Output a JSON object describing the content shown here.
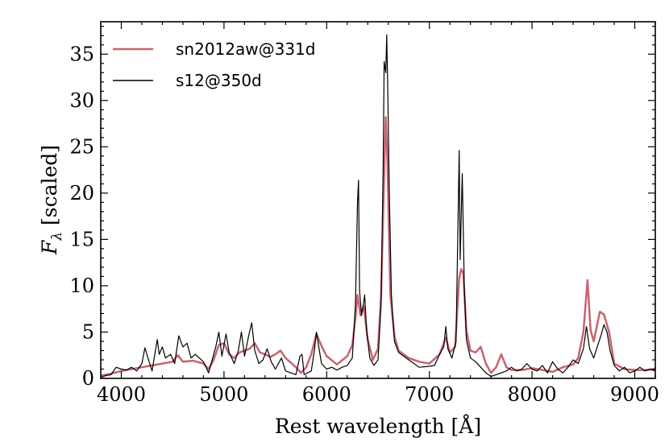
{
  "chart_data": {
    "type": "line",
    "title": "",
    "xlabel": "Rest wavelength [Å]",
    "ylabel_main": "F",
    "ylabel_sub": "λ",
    "ylabel_rest": " [scaled]",
    "xlim": [
      3800,
      9200
    ],
    "ylim": [
      0,
      38.5
    ],
    "xticks": [
      4000,
      5000,
      6000,
      7000,
      8000,
      9000
    ],
    "yticks": [
      0,
      5,
      10,
      15,
      20,
      25,
      30,
      35
    ],
    "legend_position": "top-left",
    "series": [
      {
        "name": "sn2012aw@331d",
        "color": "#c8636f",
        "points": [
          [
            3800,
            0.3
          ],
          [
            3900,
            0.5
          ],
          [
            4000,
            0.8
          ],
          [
            4100,
            1.0
          ],
          [
            4200,
            1.2
          ],
          [
            4300,
            1.4
          ],
          [
            4400,
            1.6
          ],
          [
            4500,
            1.8
          ],
          [
            4550,
            2.5
          ],
          [
            4600,
            1.8
          ],
          [
            4700,
            1.9
          ],
          [
            4800,
            1.6
          ],
          [
            4850,
            1.0
          ],
          [
            4900,
            2.0
          ],
          [
            4950,
            3.6
          ],
          [
            5000,
            3.8
          ],
          [
            5050,
            2.6
          ],
          [
            5100,
            2.2
          ],
          [
            5150,
            2.8
          ],
          [
            5200,
            3.0
          ],
          [
            5250,
            3.2
          ],
          [
            5300,
            3.8
          ],
          [
            5350,
            2.8
          ],
          [
            5400,
            2.6
          ],
          [
            5450,
            2.3
          ],
          [
            5500,
            2.6
          ],
          [
            5550,
            3.0
          ],
          [
            5600,
            2.2
          ],
          [
            5700,
            1.2
          ],
          [
            5750,
            0.6
          ],
          [
            5800,
            1.2
          ],
          [
            5850,
            2.6
          ],
          [
            5900,
            4.8
          ],
          [
            5950,
            3.5
          ],
          [
            6000,
            2.4
          ],
          [
            6100,
            1.5
          ],
          [
            6200,
            2.4
          ],
          [
            6250,
            3.6
          ],
          [
            6280,
            6.5
          ],
          [
            6300,
            9.0
          ],
          [
            6330,
            6.8
          ],
          [
            6360,
            7.8
          ],
          [
            6400,
            4.2
          ],
          [
            6450,
            2.0
          ],
          [
            6500,
            3.2
          ],
          [
            6530,
            9.0
          ],
          [
            6560,
            22.0
          ],
          [
            6575,
            28.2
          ],
          [
            6590,
            24.0
          ],
          [
            6620,
            9.0
          ],
          [
            6660,
            4.5
          ],
          [
            6700,
            3.0
          ],
          [
            6800,
            2.2
          ],
          [
            6900,
            1.8
          ],
          [
            7000,
            1.6
          ],
          [
            7100,
            2.6
          ],
          [
            7160,
            4.4
          ],
          [
            7200,
            2.8
          ],
          [
            7250,
            3.4
          ],
          [
            7290,
            10.8
          ],
          [
            7310,
            11.8
          ],
          [
            7330,
            11.4
          ],
          [
            7360,
            5.2
          ],
          [
            7400,
            3.0
          ],
          [
            7450,
            2.8
          ],
          [
            7500,
            3.4
          ],
          [
            7550,
            1.6
          ],
          [
            7600,
            0.6
          ],
          [
            7650,
            1.2
          ],
          [
            7700,
            2.6
          ],
          [
            7750,
            1.2
          ],
          [
            7800,
            0.9
          ],
          [
            7900,
            0.9
          ],
          [
            8000,
            1.1
          ],
          [
            8100,
            0.9
          ],
          [
            8200,
            0.7
          ],
          [
            8300,
            1.2
          ],
          [
            8400,
            1.5
          ],
          [
            8450,
            2.2
          ],
          [
            8500,
            5.0
          ],
          [
            8540,
            10.6
          ],
          [
            8570,
            5.2
          ],
          [
            8600,
            4.0
          ],
          [
            8660,
            7.2
          ],
          [
            8700,
            6.9
          ],
          [
            8750,
            5.0
          ],
          [
            8800,
            1.6
          ],
          [
            8900,
            1.0
          ],
          [
            9000,
            0.9
          ],
          [
            9100,
            0.9
          ],
          [
            9200,
            1.0
          ]
        ]
      },
      {
        "name": "s12@350d",
        "color": "#000000",
        "points": [
          [
            3800,
            0.1
          ],
          [
            3850,
            0.3
          ],
          [
            3900,
            0.4
          ],
          [
            3950,
            1.2
          ],
          [
            4000,
            1.0
          ],
          [
            4050,
            0.9
          ],
          [
            4100,
            1.2
          ],
          [
            4150,
            0.8
          ],
          [
            4200,
            1.6
          ],
          [
            4230,
            3.3
          ],
          [
            4260,
            2.2
          ],
          [
            4300,
            0.8
          ],
          [
            4350,
            4.2
          ],
          [
            4370,
            2.6
          ],
          [
            4400,
            3.4
          ],
          [
            4430,
            2.2
          ],
          [
            4480,
            2.6
          ],
          [
            4520,
            1.6
          ],
          [
            4560,
            4.6
          ],
          [
            4600,
            3.4
          ],
          [
            4640,
            3.8
          ],
          [
            4680,
            2.2
          ],
          [
            4720,
            2.6
          ],
          [
            4760,
            2.2
          ],
          [
            4800,
            1.8
          ],
          [
            4850,
            0.6
          ],
          [
            4880,
            1.8
          ],
          [
            4920,
            3.4
          ],
          [
            4950,
            5.0
          ],
          [
            4980,
            2.4
          ],
          [
            5020,
            4.8
          ],
          [
            5050,
            2.8
          ],
          [
            5100,
            1.6
          ],
          [
            5140,
            3.0
          ],
          [
            5170,
            5.0
          ],
          [
            5200,
            2.4
          ],
          [
            5240,
            4.6
          ],
          [
            5270,
            6.0
          ],
          [
            5300,
            3.0
          ],
          [
            5340,
            1.6
          ],
          [
            5380,
            2.0
          ],
          [
            5420,
            3.2
          ],
          [
            5460,
            1.8
          ],
          [
            5500,
            1.0
          ],
          [
            5560,
            2.2
          ],
          [
            5600,
            0.8
          ],
          [
            5650,
            0.6
          ],
          [
            5700,
            0.4
          ],
          [
            5740,
            2.4
          ],
          [
            5760,
            2.6
          ],
          [
            5780,
            0.4
          ],
          [
            5850,
            0.8
          ],
          [
            5880,
            3.0
          ],
          [
            5900,
            5.0
          ],
          [
            5920,
            3.6
          ],
          [
            5950,
            1.6
          ],
          [
            6000,
            1.0
          ],
          [
            6050,
            1.2
          ],
          [
            6100,
            0.9
          ],
          [
            6150,
            1.2
          ],
          [
            6200,
            1.4
          ],
          [
            6250,
            2.2
          ],
          [
            6280,
            8.0
          ],
          [
            6300,
            18.9
          ],
          [
            6310,
            21.4
          ],
          [
            6320,
            9.5
          ],
          [
            6340,
            6.8
          ],
          [
            6360,
            8.2
          ],
          [
            6370,
            9.0
          ],
          [
            6390,
            5.0
          ],
          [
            6420,
            2.2
          ],
          [
            6460,
            1.4
          ],
          [
            6500,
            2.0
          ],
          [
            6530,
            8.0
          ],
          [
            6550,
            23.0
          ],
          [
            6560,
            34.2
          ],
          [
            6575,
            33.0
          ],
          [
            6585,
            37.1
          ],
          [
            6595,
            31.0
          ],
          [
            6610,
            20.0
          ],
          [
            6630,
            9.0
          ],
          [
            6660,
            4.0
          ],
          [
            6700,
            2.8
          ],
          [
            6750,
            2.4
          ],
          [
            6800,
            2.0
          ],
          [
            6900,
            1.2
          ],
          [
            7000,
            1.3
          ],
          [
            7050,
            1.4
          ],
          [
            7100,
            2.6
          ],
          [
            7140,
            3.4
          ],
          [
            7160,
            5.6
          ],
          [
            7180,
            3.2
          ],
          [
            7220,
            2.2
          ],
          [
            7260,
            4.0
          ],
          [
            7290,
            24.6
          ],
          [
            7300,
            12.8
          ],
          [
            7320,
            22.1
          ],
          [
            7340,
            10.0
          ],
          [
            7360,
            4.2
          ],
          [
            7400,
            2.2
          ],
          [
            7450,
            1.8
          ],
          [
            7500,
            1.2
          ],
          [
            7550,
            0.6
          ],
          [
            7600,
            0.2
          ],
          [
            7650,
            0.4
          ],
          [
            7700,
            0.6
          ],
          [
            7750,
            0.8
          ],
          [
            7800,
            1.2
          ],
          [
            7850,
            0.8
          ],
          [
            7900,
            1.0
          ],
          [
            7950,
            1.6
          ],
          [
            8000,
            1.0
          ],
          [
            8050,
            0.8
          ],
          [
            8100,
            1.4
          ],
          [
            8150,
            0.6
          ],
          [
            8200,
            1.8
          ],
          [
            8250,
            1.0
          ],
          [
            8300,
            0.6
          ],
          [
            8350,
            1.2
          ],
          [
            8400,
            2.0
          ],
          [
            8450,
            1.6
          ],
          [
            8500,
            3.2
          ],
          [
            8530,
            5.6
          ],
          [
            8560,
            3.2
          ],
          [
            8600,
            2.2
          ],
          [
            8640,
            3.6
          ],
          [
            8670,
            4.6
          ],
          [
            8700,
            5.8
          ],
          [
            8730,
            5.0
          ],
          [
            8760,
            3.0
          ],
          [
            8800,
            1.4
          ],
          [
            8850,
            0.8
          ],
          [
            8900,
            1.2
          ],
          [
            8950,
            0.6
          ],
          [
            9000,
            0.8
          ],
          [
            9050,
            1.2
          ],
          [
            9100,
            0.8
          ],
          [
            9150,
            1.0
          ],
          [
            9200,
            0.8
          ]
        ]
      }
    ]
  }
}
